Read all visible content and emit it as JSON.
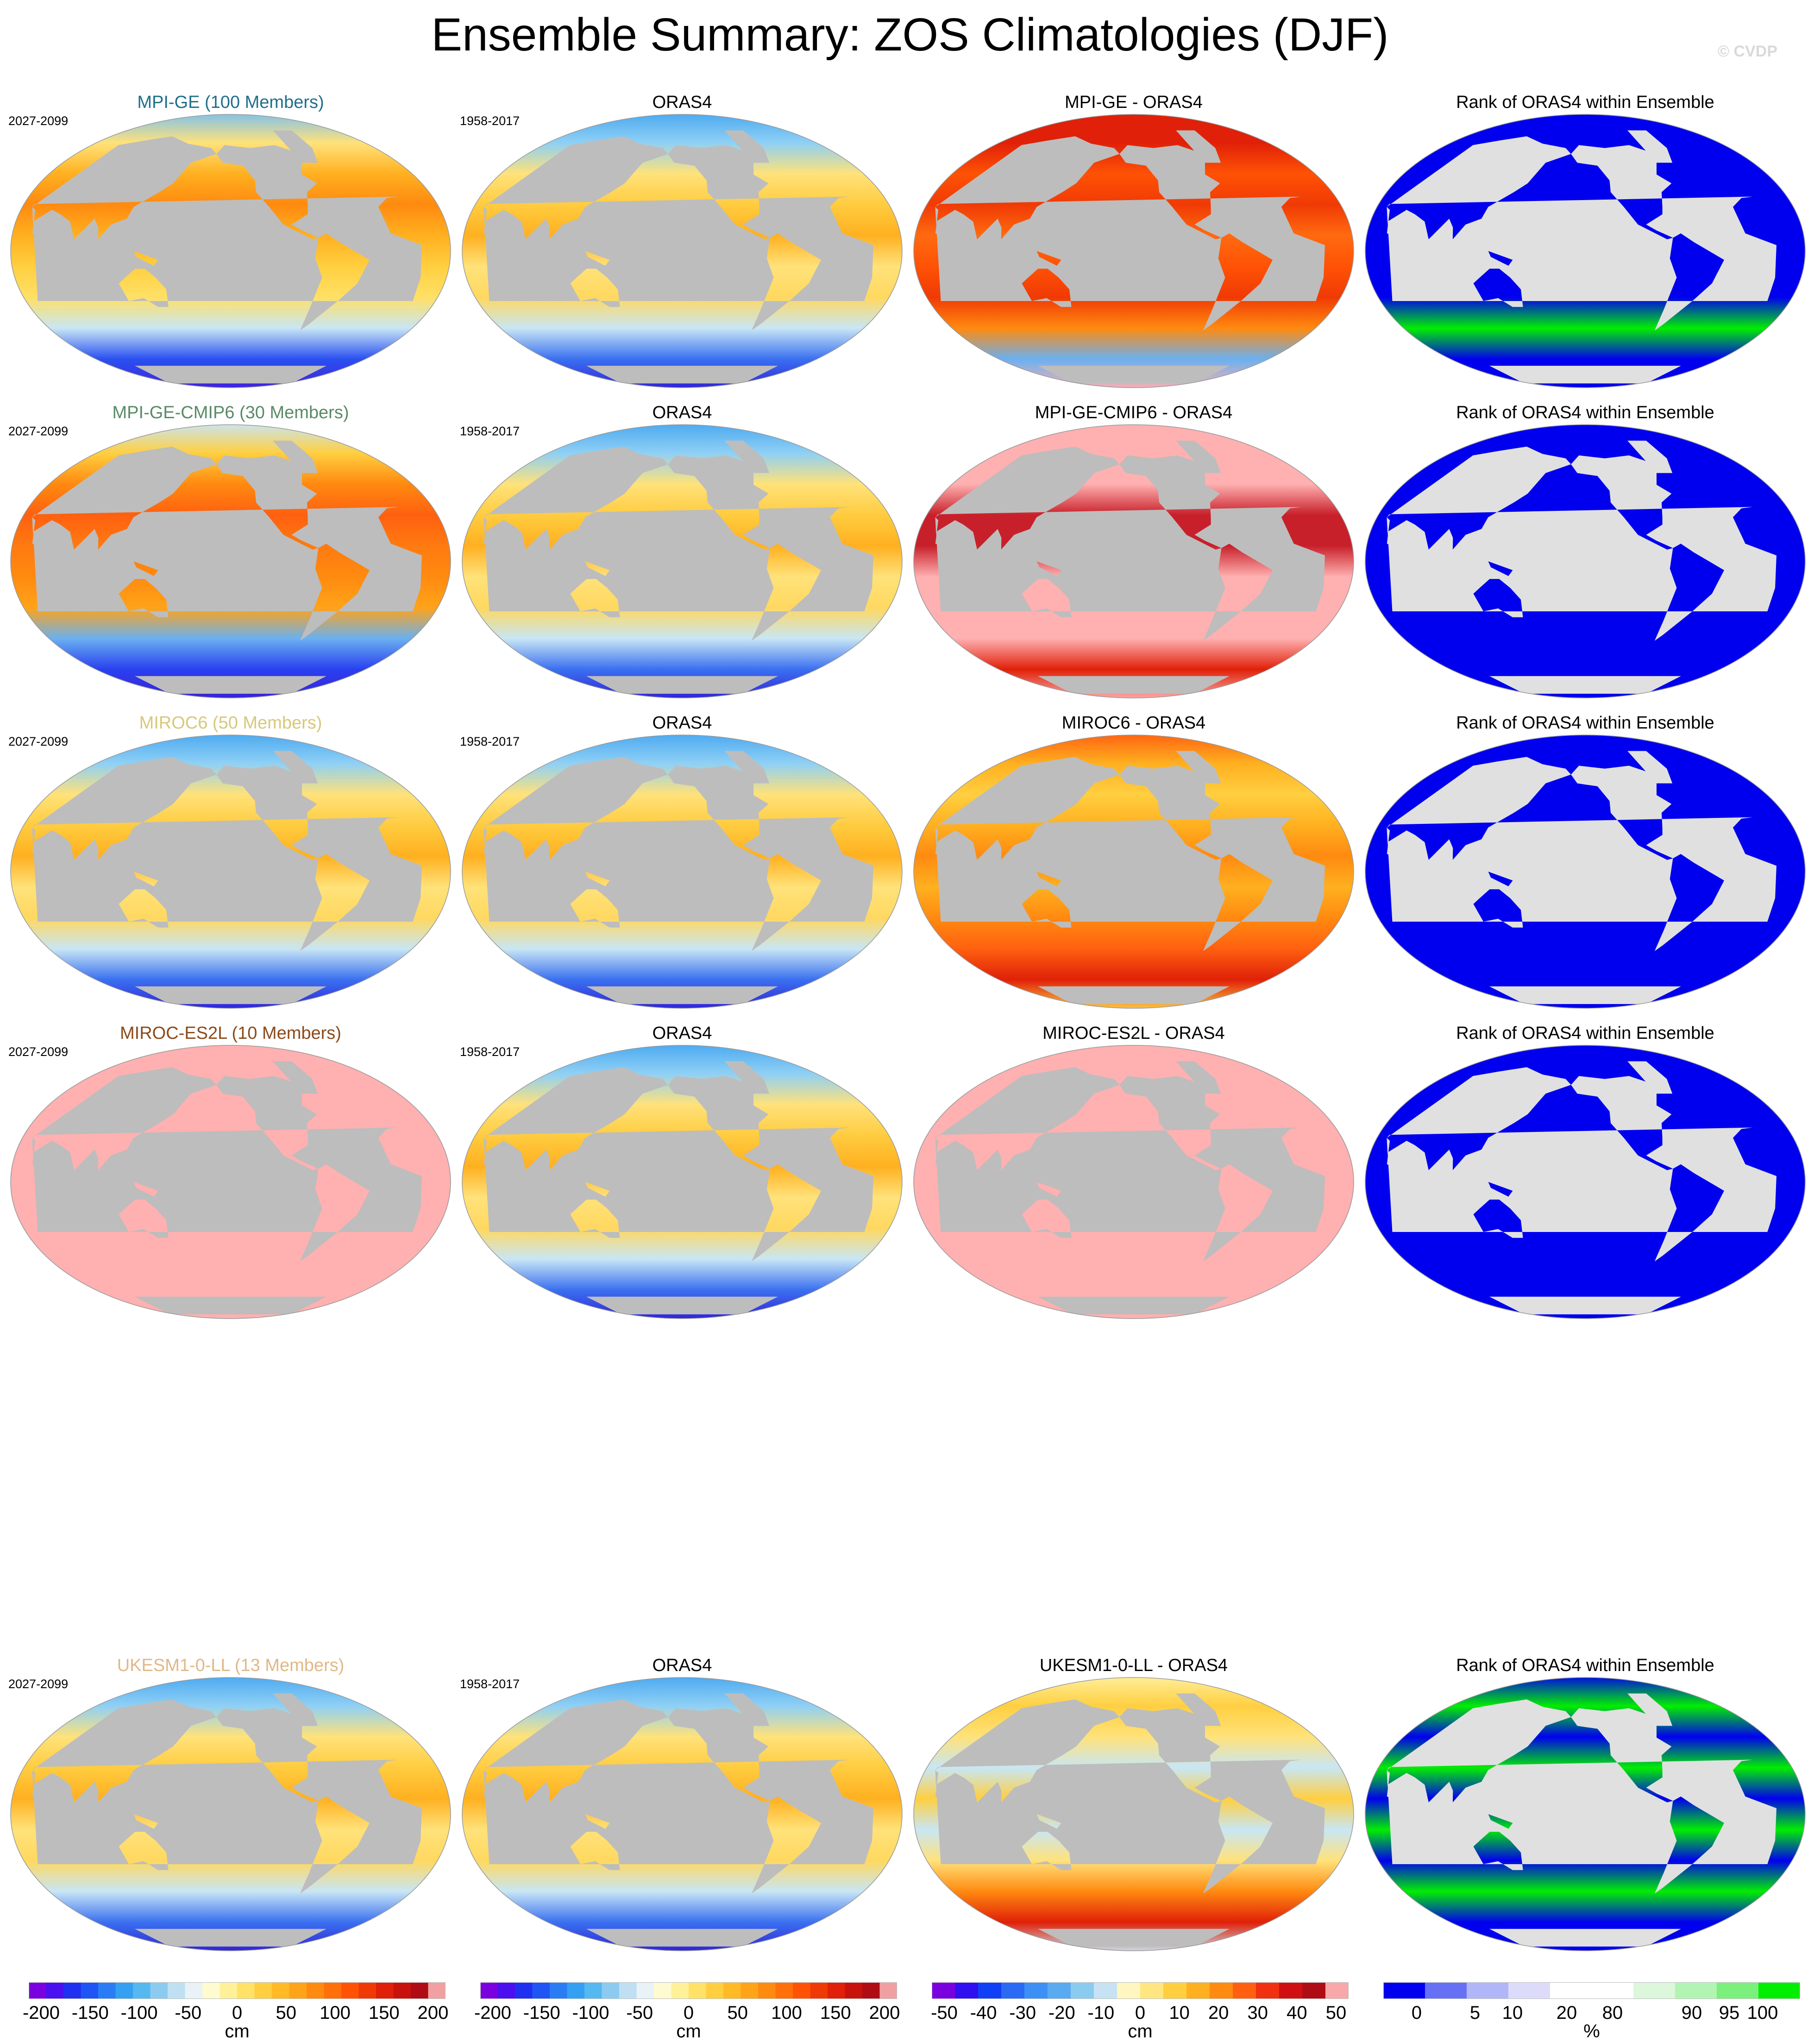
{
  "title": "Ensemble Summary: ZOS Climatologies (DJF)",
  "copyright": "© CVDP",
  "rows": [
    {
      "ensemble": {
        "title": "MPI-GE (100 Members)",
        "color": "#1f6f8b",
        "years": "2027-2099",
        "style": "warm"
      },
      "obs": {
        "title": "ORAS4",
        "years": "1958-2017",
        "style": "obs"
      },
      "diff": {
        "title": "MPI-GE - ORAS4",
        "style": "diffred"
      },
      "rank": {
        "title": "Rank of ORAS4 within Ensemble",
        "style": "rankA"
      }
    },
    {
      "ensemble": {
        "title": "MPI-GE-CMIP6 (30 Members)",
        "color": "#5a8a66",
        "years": "2027-2099",
        "style": "hot"
      },
      "obs": {
        "title": "ORAS4",
        "years": "1958-2017",
        "style": "obs"
      },
      "diff": {
        "title": "MPI-GE-CMIP6 - ORAS4",
        "style": "diffpink"
      },
      "rank": {
        "title": "Rank of ORAS4 within Ensemble",
        "style": "rankB"
      }
    },
    {
      "ensemble": {
        "title": "MIROC6 (50 Members)",
        "color": "#d8c87a",
        "years": "2027-2099",
        "style": "obs"
      },
      "obs": {
        "title": "ORAS4",
        "years": "1958-2017",
        "style": "obs"
      },
      "diff": {
        "title": "MIROC6 - ORAS4",
        "style": "difforange"
      },
      "rank": {
        "title": "Rank of ORAS4 within Ensemble",
        "style": "rankC"
      }
    },
    {
      "ensemble": {
        "title": "MIROC-ES2L (10 Members)",
        "color": "#8b4a1a",
        "years": "2027-2099",
        "style": "pink"
      },
      "obs": {
        "title": "ORAS4",
        "years": "1958-2017",
        "style": "obs"
      },
      "diff": {
        "title": "MIROC-ES2L - ORAS4",
        "style": "pink"
      },
      "rank": {
        "title": "Rank of ORAS4 within Ensemble",
        "style": "rankC"
      }
    },
    {
      "ensemble": {
        "title": "UKESM1-0-LL (13 Members)",
        "color": "#e0b888",
        "years": "2027-2099",
        "style": "obs"
      },
      "obs": {
        "title": "ORAS4",
        "years": "1958-2017",
        "style": "obs"
      },
      "diff": {
        "title": "UKESM1-0-LL - ORAS4",
        "style": "diffmixed"
      },
      "rank": {
        "title": "Rank of ORAS4 within Ensemble",
        "style": "rankD"
      }
    }
  ],
  "colorbars": [
    {
      "labels": [
        "-200",
        "-150",
        "-100",
        "-50",
        "0",
        "50",
        "100",
        "150",
        "200"
      ],
      "unit": "cm",
      "colors": [
        "#7a00e0",
        "#4b10f0",
        "#2030f0",
        "#1f55f5",
        "#2a7cf5",
        "#33a0f2",
        "#55b8f0",
        "#8ccbf0",
        "#bfe0f3",
        "#e8f2f7",
        "#fffbd0",
        "#fff19a",
        "#ffe266",
        "#ffcf40",
        "#ffba26",
        "#ffa319",
        "#ff8a10",
        "#ff6f0a",
        "#ff5205",
        "#f03a05",
        "#e02008",
        "#c8120c",
        "#b00c14",
        "#f0a0a0"
      ]
    },
    {
      "labels": [
        "-200",
        "-150",
        "-100",
        "-50",
        "0",
        "50",
        "100",
        "150",
        "200"
      ],
      "unit": "cm",
      "colors": [
        "#7a00e0",
        "#4b10f0",
        "#2030f0",
        "#1f55f5",
        "#2a7cf5",
        "#33a0f2",
        "#55b8f0",
        "#8ccbf0",
        "#bfe0f3",
        "#e8f2f7",
        "#fffbd0",
        "#fff19a",
        "#ffe266",
        "#ffcf40",
        "#ffba26",
        "#ffa319",
        "#ff8a10",
        "#ff6f0a",
        "#ff5205",
        "#f03a05",
        "#e02008",
        "#c8120c",
        "#b00c14",
        "#f0a0a0"
      ]
    },
    {
      "labels": [
        "-50",
        "-40",
        "-30",
        "-20",
        "-10",
        "0",
        "10",
        "20",
        "30",
        "40",
        "50"
      ],
      "unit": "cm",
      "colors": [
        "#7a00e0",
        "#3010f0",
        "#1040f5",
        "#2a6af5",
        "#3c90f5",
        "#5aaaf2",
        "#8ccbf0",
        "#c6e2f3",
        "#fff6c0",
        "#ffe680",
        "#ffcf40",
        "#ffb020",
        "#ff8a10",
        "#ff6010",
        "#f03010",
        "#d01010",
        "#b00c14",
        "#f8a8a8"
      ]
    },
    {
      "labels": [
        "0",
        "5",
        "10",
        "20",
        "80",
        "90",
        "95",
        "100"
      ],
      "unit": "%",
      "colors": [
        "#0000ee",
        "#6670f5",
        "#b0b6f8",
        "#dcdcfa",
        "#ffffff",
        "#ffffff",
        "#dcf7dc",
        "#b2f5b2",
        "#7cf07c",
        "#00ee00"
      ]
    }
  ]
}
